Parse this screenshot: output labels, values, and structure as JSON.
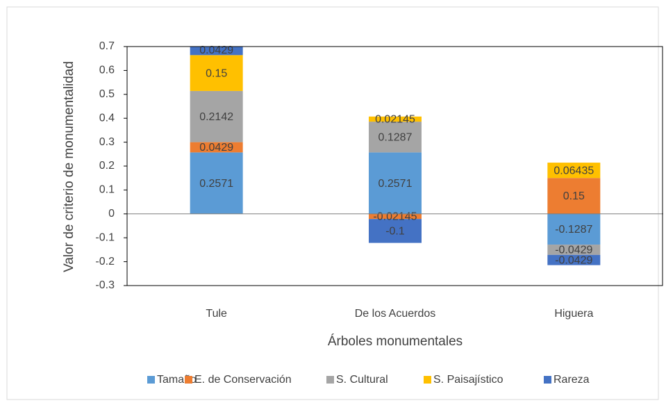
{
  "chart_data": {
    "type": "stacked_bar",
    "x_label": "Árboles monumentales",
    "y_label": "Valor de criterio de monumentalidad",
    "categories": [
      "Tule",
      "De los Acuerdos",
      "Higuera"
    ],
    "series": [
      {
        "name": "Tamaño",
        "color": "#5b9bd5",
        "values": [
          0.2571,
          0.2571,
          -0.1287
        ]
      },
      {
        "name": "E. de Conservación",
        "color": "#ed7d31",
        "values": [
          0.0429,
          -0.02145,
          0.15
        ]
      },
      {
        "name": "S. Cultural",
        "color": "#a5a5a5",
        "values": [
          0.2142,
          0.1287,
          -0.0429
        ]
      },
      {
        "name": "S. Paisajístico",
        "color": "#ffc000",
        "values": [
          0.15,
          0.02145,
          0.06435
        ]
      },
      {
        "name": "Rareza",
        "color": "#4472c4",
        "values": [
          0.0429,
          -0.1,
          -0.0429
        ]
      }
    ],
    "ylim": [
      -0.3,
      0.7
    ],
    "yticks": [
      -0.3,
      -0.2,
      -0.1,
      0,
      0.1,
      0.2,
      0.3,
      0.4,
      0.5,
      0.6,
      0.7
    ],
    "legend": "bottom"
  }
}
